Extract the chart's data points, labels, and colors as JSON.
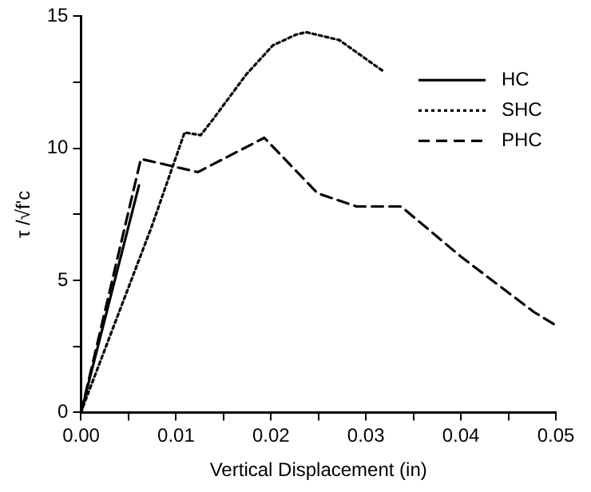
{
  "chart_data": {
    "type": "line",
    "xlabel": "Vertical Displacement (in)",
    "ylabel": "τ /√f'c",
    "xlim": [
      0,
      0.05
    ],
    "ylim": [
      0,
      15
    ],
    "xticks": [
      {
        "value": 0,
        "label": "0.00"
      },
      {
        "value": 0.005,
        "label": null
      },
      0.01,
      {
        "value": 0.015,
        "label": null
      },
      0.02,
      {
        "value": 0.025,
        "label": null
      },
      0.03,
      {
        "value": 0.035,
        "label": null
      },
      0.04,
      {
        "value": 0.045,
        "label": null
      },
      0.05
    ],
    "yticks": [
      0,
      {
        "value": 2.5,
        "label": null
      },
      5,
      {
        "value": 7.5,
        "label": null
      },
      10,
      {
        "value": 12.5,
        "label": null
      },
      15
    ],
    "grid": false,
    "legend": "top right",
    "marker": "none",
    "series": [
      {
        "name": "HC",
        "color": "#000000",
        "line_style": "solid",
        "x": [
          0,
          0.0061
        ],
        "values": [
          0,
          8.6
        ]
      },
      {
        "name": "SHC",
        "color": "#000000",
        "line_style": "dotted",
        "x": [
          0,
          0.0004,
          0.0074,
          0.0109,
          0.0126,
          0.0139,
          0.0174,
          0.0202,
          0.0226,
          0.0237,
          0.0272,
          0.0319
        ],
        "values": [
          0,
          0.4,
          7.0,
          10.6,
          10.5,
          11.1,
          12.8,
          13.9,
          14.3,
          14.4,
          14.1,
          12.9
        ]
      },
      {
        "name": "PHC",
        "color": "#000000",
        "line_style": "dashed",
        "x": [
          0,
          0.0063,
          0.0123,
          0.0193,
          0.0249,
          0.029,
          0.0337,
          0.04,
          0.0477,
          0.05
        ],
        "values": [
          0,
          9.6,
          9.1,
          10.4,
          8.3,
          7.8,
          7.8,
          5.9,
          3.8,
          3.3
        ]
      }
    ]
  }
}
